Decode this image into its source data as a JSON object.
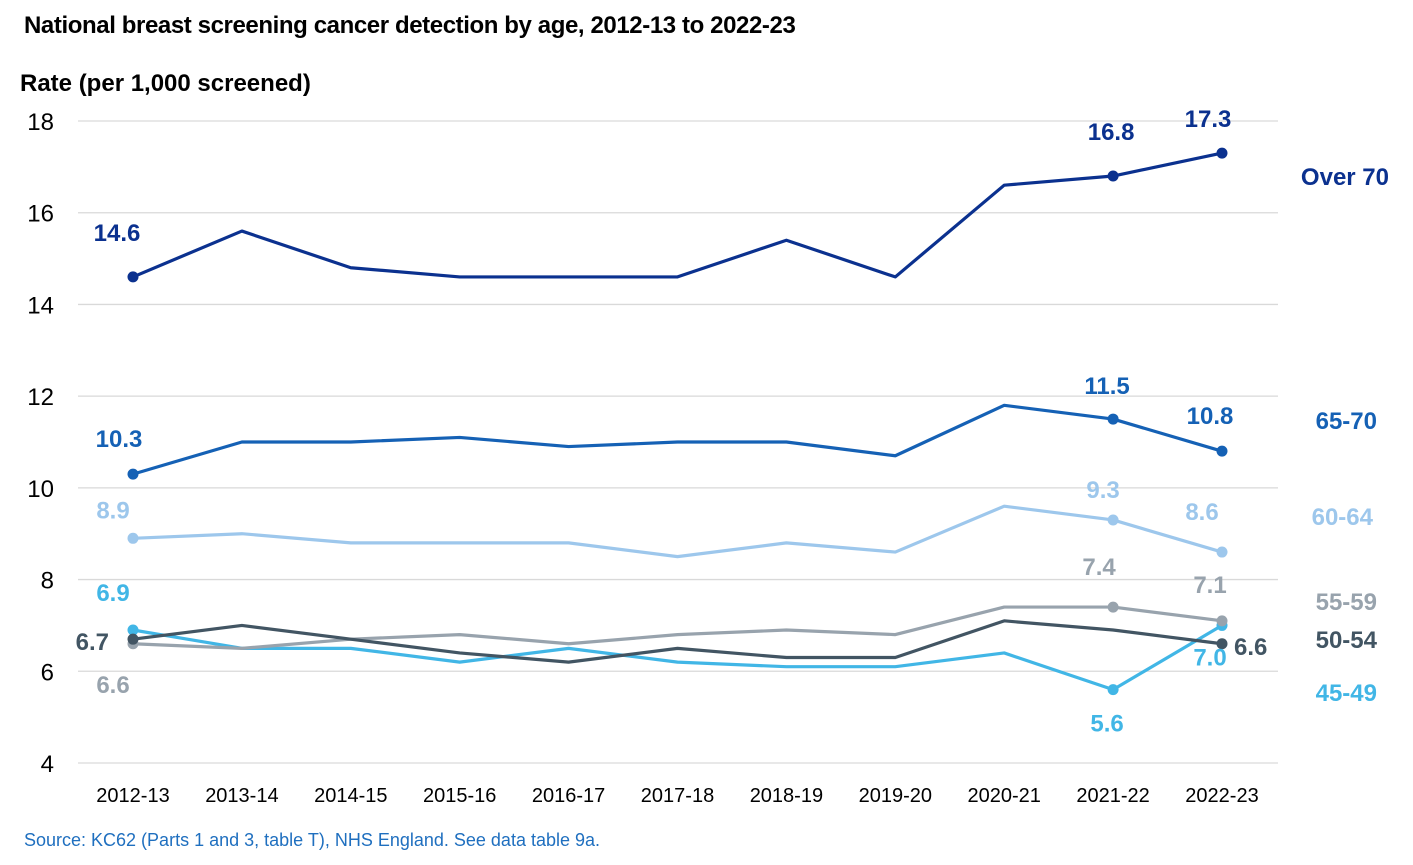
{
  "chart_data": {
    "type": "line",
    "title": "National breast screening cancer detection by age, 2012-13 to 2022-23",
    "ylabel": "Rate (per 1,000 screened)",
    "xlabel": "",
    "source": "Source: KC62 (Parts 1 and 3, table T), NHS England. See data table 9a.",
    "ylim": [
      4,
      18
    ],
    "yticks": [
      4,
      6,
      8,
      10,
      12,
      14,
      16,
      18
    ],
    "grid": "horizontal",
    "categories": [
      "2012-13",
      "2013-14",
      "2014-15",
      "2015-16",
      "2016-17",
      "2017-18",
      "2018-19",
      "2019-20",
      "2020-21",
      "2021-22",
      "2022-23"
    ],
    "series": [
      {
        "name": "Over 70",
        "color": "#0b318f",
        "values": [
          14.6,
          15.6,
          14.8,
          14.6,
          14.6,
          14.6,
          15.4,
          14.6,
          16.6,
          16.8,
          17.3
        ],
        "labels": [
          {
            "i": 0,
            "text": "14.6"
          },
          {
            "i": 9,
            "text": "16.8"
          },
          {
            "i": 10,
            "text": "17.3"
          }
        ]
      },
      {
        "name": "65-70",
        "color": "#1561b5",
        "values": [
          10.3,
          11.0,
          11.0,
          11.1,
          10.9,
          11.0,
          11.0,
          10.7,
          11.8,
          11.5,
          10.8
        ],
        "labels": [
          {
            "i": 0,
            "text": "10.3"
          },
          {
            "i": 9,
            "text": "11.5"
          },
          {
            "i": 10,
            "text": "10.8"
          }
        ]
      },
      {
        "name": "60-64",
        "color": "#9dc7ec",
        "values": [
          8.9,
          9.0,
          8.8,
          8.8,
          8.8,
          8.5,
          8.8,
          8.6,
          9.6,
          9.3,
          8.6
        ],
        "labels": [
          {
            "i": 0,
            "text": "8.9"
          },
          {
            "i": 9,
            "text": "9.3"
          },
          {
            "i": 10,
            "text": "8.6"
          }
        ]
      },
      {
        "name": "55-59",
        "color": "#98a3ad",
        "values": [
          6.6,
          6.5,
          6.7,
          6.8,
          6.6,
          6.8,
          6.9,
          6.8,
          7.4,
          7.4,
          7.1
        ],
        "labels": [
          {
            "i": 0,
            "text": "6.6"
          },
          {
            "i": 9,
            "text": "7.4"
          },
          {
            "i": 10,
            "text": "7.1"
          }
        ]
      },
      {
        "name": "50-54",
        "color": "#425563",
        "values": [
          6.7,
          7.0,
          6.7,
          6.4,
          6.2,
          6.5,
          6.3,
          6.3,
          7.1,
          6.9,
          6.6
        ],
        "labels": [
          {
            "i": 0,
            "text": "6.7"
          },
          {
            "i": 10,
            "text": "6.6"
          }
        ]
      },
      {
        "name": "45-49",
        "color": "#41b6e6",
        "values": [
          6.9,
          6.5,
          6.5,
          6.2,
          6.5,
          6.2,
          6.1,
          6.1,
          6.4,
          5.6,
          7.0
        ],
        "labels": [
          {
            "i": 0,
            "text": "6.9"
          },
          {
            "i": 9,
            "text": "5.6"
          },
          {
            "i": 10,
            "text": "7.0"
          }
        ]
      }
    ]
  }
}
